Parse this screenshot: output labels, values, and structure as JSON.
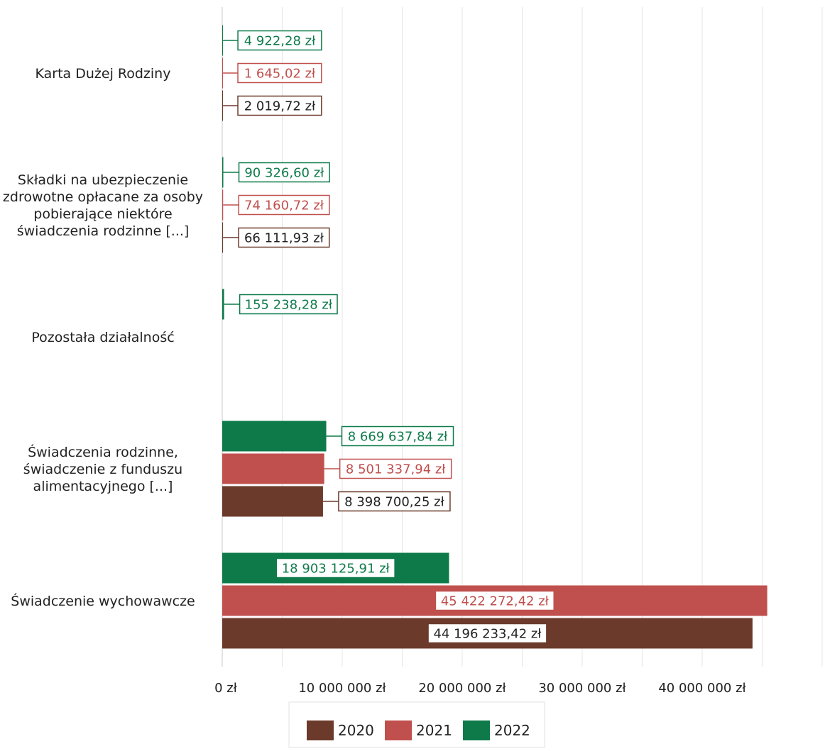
{
  "chart_data": {
    "type": "bar",
    "orientation": "horizontal",
    "categories": [
      "Karta Dużej Rodziny",
      "Składki na ubezpieczenie zdrowotne opłacane za osoby pobierające niektóre świadczenia rodzinne [...]",
      "Pozostała działalność",
      "Świadczenia rodzinne, świadczenie z funduszu alimentacyjnego [...]",
      "Świadczenie wychowawcze"
    ],
    "category_lines": [
      [
        "Karta Dużej Rodziny"
      ],
      [
        "Składki na ubezpieczenie",
        "zdrowotne opłacane za osoby",
        "pobierające niektóre",
        "świadczenia rodzinne [...]"
      ],
      [
        "Pozostała działalność"
      ],
      [
        "Świadczenia rodzinne,",
        "świadczenie z funduszu",
        "alimentacyjnego [...]"
      ],
      [
        "Świadczenie wychowawcze"
      ]
    ],
    "series": [
      {
        "name": "2022",
        "color": "#0e7a4a",
        "values": [
          4922.28,
          90326.6,
          155238.28,
          8669637.84,
          18903125.91
        ],
        "labels": [
          "4 922,28 zł",
          "90 326,60 zł",
          "155 238,28 zł",
          "8 669 637,84 zł",
          "18 903 125,91 zł"
        ]
      },
      {
        "name": "2021",
        "color": "#c0504d",
        "values": [
          1645.02,
          74160.72,
          null,
          8501337.94,
          45422272.42
        ],
        "labels": [
          "1 645,02 zł",
          "74 160,72 zł",
          null,
          "8 501 337,94 zł",
          "45 422 272,42 zł"
        ]
      },
      {
        "name": "2020",
        "color": "#6b3a2a",
        "values": [
          2019.72,
          66111.93,
          null,
          8398700.25,
          44196233.42
        ],
        "labels": [
          "2 019,72 zł",
          "66 111,93 zł",
          null,
          "8 398 700,25 zł",
          "44 196 233,42 zł"
        ]
      }
    ],
    "x_ticks": [
      0,
      10000000,
      20000000,
      30000000,
      40000000
    ],
    "x_tick_labels": [
      "0 zł",
      "10 000 000 zł",
      "20 000 000 zł",
      "30 000 000 zł",
      "40 000 000 zł"
    ],
    "xlim": [
      0,
      50000000
    ],
    "grid": true,
    "legend": {
      "position": "bottom",
      "entries": [
        {
          "name": "2020",
          "color": "#6b3a2a"
        },
        {
          "name": "2021",
          "color": "#c0504d"
        },
        {
          "name": "2022",
          "color": "#0e7a4a"
        }
      ]
    },
    "title": "",
    "xlabel": "",
    "ylabel": ""
  }
}
